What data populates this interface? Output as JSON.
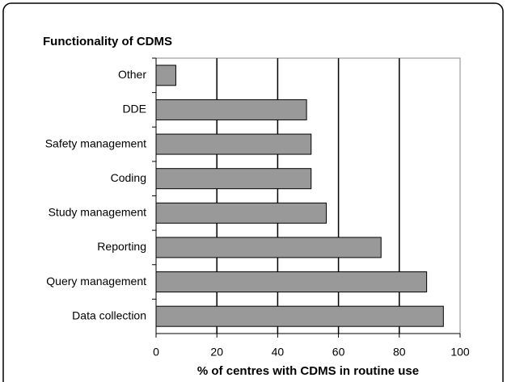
{
  "chart_data": {
    "type": "bar",
    "orientation": "horizontal",
    "title": "Functionality of CDMS",
    "xlabel": "% of centres with CDMS in routine use",
    "categories": [
      "Other",
      "DDE",
      "Safety management",
      "Coding",
      "Study management",
      "Reporting",
      "Query management",
      "Data collection"
    ],
    "values": [
      6.5,
      49.5,
      51,
      51,
      56,
      74,
      89,
      94.5
    ],
    "color": "#999999",
    "xlim": [
      0,
      100
    ],
    "xticks": [
      0,
      20,
      40,
      60,
      80,
      100
    ],
    "grid": true
  }
}
